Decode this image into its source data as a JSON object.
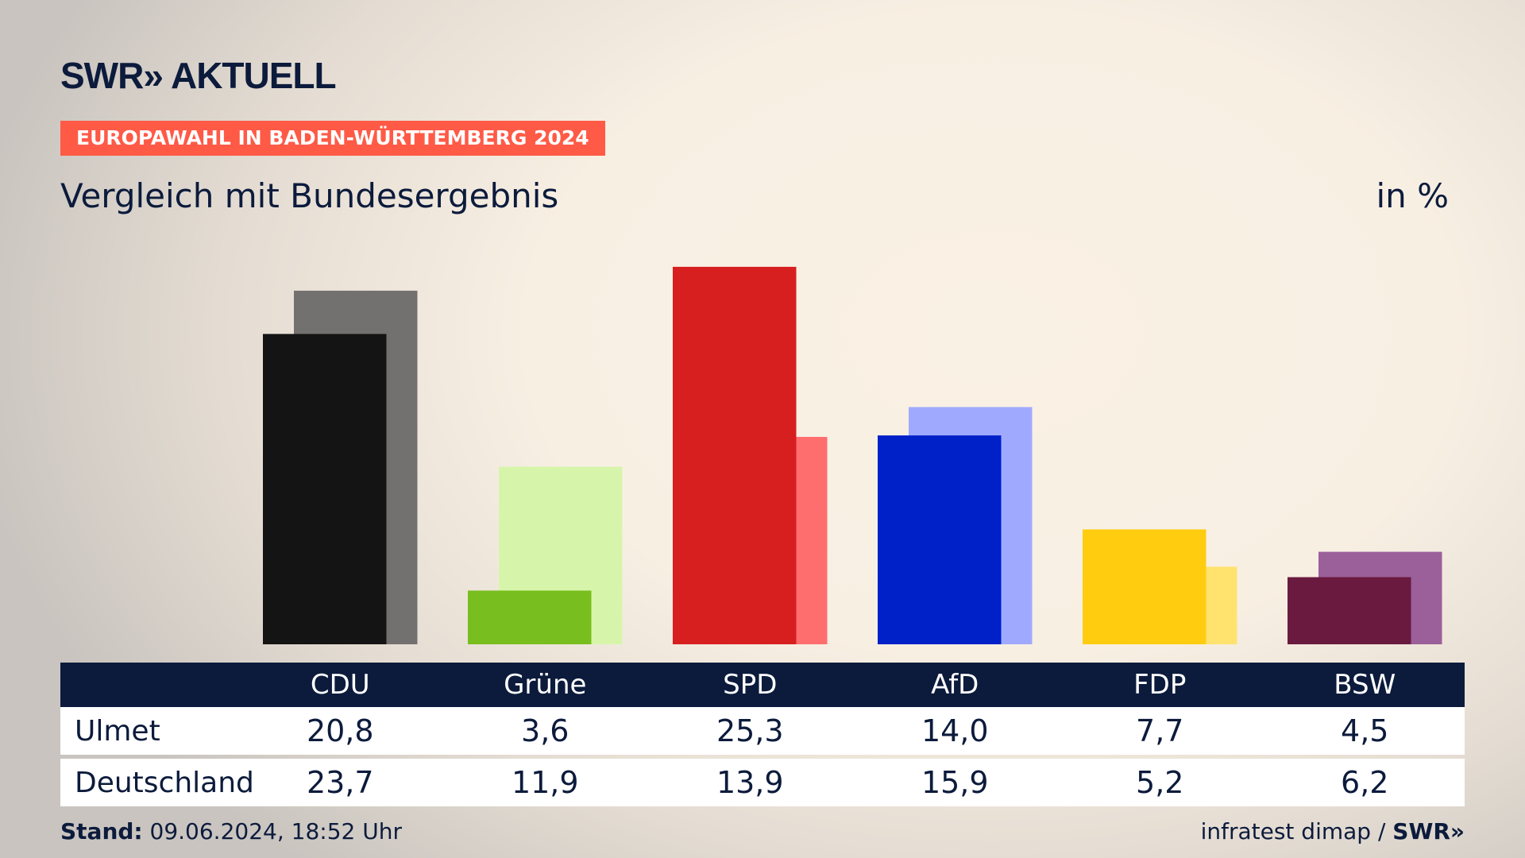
{
  "header": {
    "logo": "SWR» AKTUELL",
    "badge": "EUROPAWAHL IN BADEN-WÜRTTEMBERG 2024",
    "subtitle": "Vergleich mit Bundesergebnis",
    "unit": "in %"
  },
  "footer": {
    "stand_label": "Stand:",
    "stand_value": " 09.06.2024, 18:52 Uhr",
    "source": "infratest dimap / ",
    "source_brand": "SWR»"
  },
  "chart_data": {
    "type": "bar",
    "title": "Vergleich mit Bundesergebnis",
    "ylabel": "in %",
    "ylim": [
      0,
      26
    ],
    "categories": [
      "CDU",
      "Grüne",
      "SPD",
      "AfD",
      "FDP",
      "BSW"
    ],
    "series": [
      {
        "name": "Ulmet",
        "values": [
          20.8,
          3.6,
          25.3,
          14.0,
          7.7,
          4.5
        ],
        "labels": [
          "20,8",
          "3,6",
          "25,3",
          "14,0",
          "7,7",
          "4,5"
        ],
        "colors": [
          "#141414",
          "#78be1e",
          "#d71f1f",
          "#0020c8",
          "#ffcc10",
          "#6a1a3f"
        ]
      },
      {
        "name": "Deutschland",
        "values": [
          23.7,
          11.9,
          13.9,
          15.9,
          5.2,
          6.2
        ],
        "labels": [
          "23,7",
          "11,9",
          "13,9",
          "15,9",
          "5,2",
          "6,2"
        ],
        "colors": [
          "#737170",
          "#d7f5aa",
          "#ff6e6e",
          "#9faaff",
          "#ffe36e",
          "#9b5f9a"
        ]
      }
    ]
  }
}
